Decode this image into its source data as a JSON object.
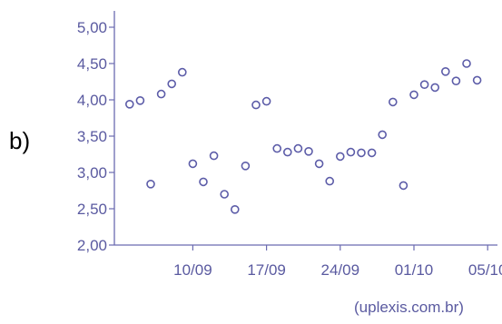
{
  "panel_label": "b)",
  "source": "(uplexis.com.br)",
  "colors": {
    "axis": "#6b6bb0",
    "marker": "#5c5ca8",
    "text": "#5a5aa0"
  },
  "chart_data": {
    "type": "scatter",
    "title": "",
    "xlabel": "",
    "ylabel": "",
    "ylim": [
      2.0,
      5.0
    ],
    "yticks": [
      "5,00",
      "4,50",
      "4,00",
      "3,50",
      "3,00",
      "2,50",
      "2,00"
    ],
    "ytick_values": [
      5.0,
      4.5,
      4.0,
      3.5,
      3.0,
      2.5,
      2.0
    ],
    "xticks": [
      "10/09",
      "17/09",
      "24/09",
      "01/10",
      "05/10"
    ],
    "xtick_index": [
      4,
      11,
      18,
      25,
      32
    ],
    "x_range": [
      -3,
      37
    ],
    "grid": false,
    "points": [
      {
        "x": -2,
        "y": 3.94
      },
      {
        "x": -1,
        "y": 3.99
      },
      {
        "x": 0,
        "y": 2.84
      },
      {
        "x": 1,
        "y": 4.08
      },
      {
        "x": 2,
        "y": 4.22
      },
      {
        "x": 3,
        "y": 4.38
      },
      {
        "x": 4,
        "y": 3.12
      },
      {
        "x": 5,
        "y": 2.87
      },
      {
        "x": 6,
        "y": 3.23
      },
      {
        "x": 7,
        "y": 2.7
      },
      {
        "x": 8,
        "y": 2.49
      },
      {
        "x": 9,
        "y": 3.09
      },
      {
        "x": 10,
        "y": 3.93
      },
      {
        "x": 11,
        "y": 3.98
      },
      {
        "x": 12,
        "y": 3.33
      },
      {
        "x": 13,
        "y": 3.28
      },
      {
        "x": 14,
        "y": 3.33
      },
      {
        "x": 15,
        "y": 3.29
      },
      {
        "x": 16,
        "y": 3.12
      },
      {
        "x": 17,
        "y": 2.88
      },
      {
        "x": 18,
        "y": 3.22
      },
      {
        "x": 19,
        "y": 3.28
      },
      {
        "x": 20,
        "y": 3.27
      },
      {
        "x": 21,
        "y": 3.27
      },
      {
        "x": 22,
        "y": 3.52
      },
      {
        "x": 23,
        "y": 3.97
      },
      {
        "x": 24,
        "y": 2.82
      },
      {
        "x": 25,
        "y": 4.07
      },
      {
        "x": 26,
        "y": 4.21
      },
      {
        "x": 27,
        "y": 4.17
      },
      {
        "x": 28,
        "y": 4.39
      },
      {
        "x": 29,
        "y": 4.26
      },
      {
        "x": 30,
        "y": 4.5
      },
      {
        "x": 31,
        "y": 4.27
      }
    ]
  }
}
